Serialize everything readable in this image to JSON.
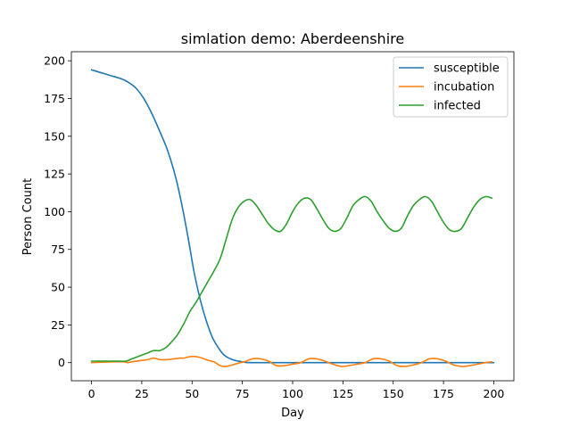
{
  "chart_data": {
    "type": "line",
    "title": "simlation demo: Aberdeenshire",
    "xlabel": "Day",
    "ylabel": "Person Count",
    "xlim": [
      -10,
      210
    ],
    "ylim": [
      -12,
      206
    ],
    "xticks": [
      0,
      25,
      50,
      75,
      100,
      125,
      150,
      175,
      200
    ],
    "yticks": [
      0,
      25,
      50,
      75,
      100,
      125,
      150,
      175,
      200
    ],
    "grid": false,
    "legend_position": "top-right",
    "series": [
      {
        "name": "susceptible",
        "color": "#1f77b4",
        "points": [
          [
            0,
            194
          ],
          [
            5,
            192
          ],
          [
            10,
            190
          ],
          [
            15,
            188
          ],
          [
            18,
            186
          ],
          [
            22,
            182
          ],
          [
            26,
            175
          ],
          [
            30,
            165
          ],
          [
            34,
            153
          ],
          [
            38,
            140
          ],
          [
            42,
            122
          ],
          [
            45,
            104
          ],
          [
            48,
            83
          ],
          [
            51,
            60
          ],
          [
            54,
            42
          ],
          [
            57,
            28
          ],
          [
            60,
            17
          ],
          [
            63,
            10
          ],
          [
            66,
            5
          ],
          [
            70,
            2
          ],
          [
            75,
            0.5
          ],
          [
            80,
            0
          ],
          [
            100,
            0
          ],
          [
            125,
            0
          ],
          [
            150,
            0
          ],
          [
            175,
            0
          ],
          [
            200,
            0
          ]
        ]
      },
      {
        "name": "incubation",
        "color": "#ff7f0e",
        "points": [
          [
            0,
            0
          ],
          [
            10,
            0.5
          ],
          [
            16,
            0.5
          ],
          [
            18,
            0
          ],
          [
            20,
            0.5
          ],
          [
            25,
            1.5
          ],
          [
            28,
            2
          ],
          [
            31,
            3
          ],
          [
            34,
            2
          ],
          [
            38,
            2
          ],
          [
            41,
            2.5
          ],
          [
            44,
            3
          ],
          [
            46,
            3
          ],
          [
            49,
            4
          ],
          [
            52,
            4
          ],
          [
            55,
            3
          ],
          [
            58,
            1.5
          ],
          [
            61,
            0.5
          ],
          [
            64,
            -2
          ],
          [
            67,
            -2.5
          ],
          [
            70,
            -1.5
          ],
          [
            74,
            0
          ],
          [
            76,
            0.5
          ],
          [
            80,
            2.5
          ],
          [
            84,
            2.5
          ],
          [
            88,
            1
          ],
          [
            92,
            -2
          ],
          [
            96,
            -2
          ],
          [
            100,
            -1
          ],
          [
            104,
            0
          ],
          [
            108,
            2.5
          ],
          [
            112,
            2.5
          ],
          [
            116,
            1
          ],
          [
            120,
            -1
          ],
          [
            124,
            -2.5
          ],
          [
            128,
            -2
          ],
          [
            132,
            -1
          ],
          [
            136,
            0
          ],
          [
            140,
            2.5
          ],
          [
            144,
            2.5
          ],
          [
            148,
            1
          ],
          [
            152,
            -2
          ],
          [
            156,
            -2.5
          ],
          [
            160,
            -1.5
          ],
          [
            164,
            0
          ],
          [
            168,
            2.5
          ],
          [
            172,
            2.5
          ],
          [
            176,
            1
          ],
          [
            180,
            -1.5
          ],
          [
            184,
            -2.5
          ],
          [
            188,
            -2
          ],
          [
            192,
            -1
          ],
          [
            196,
            0
          ],
          [
            199,
            0.5
          ]
        ]
      },
      {
        "name": "infected",
        "color": "#2ca02c",
        "points": [
          [
            0,
            1
          ],
          [
            10,
            1
          ],
          [
            17,
            1
          ],
          [
            20,
            2.5
          ],
          [
            25,
            5
          ],
          [
            28,
            6.5
          ],
          [
            31,
            8
          ],
          [
            34,
            8
          ],
          [
            37,
            10
          ],
          [
            40,
            14
          ],
          [
            43,
            19
          ],
          [
            46,
            26
          ],
          [
            49,
            34
          ],
          [
            52,
            40
          ],
          [
            55,
            47
          ],
          [
            58,
            54
          ],
          [
            61,
            61
          ],
          [
            64,
            69
          ],
          [
            67,
            82
          ],
          [
            70,
            95
          ],
          [
            73,
            103
          ],
          [
            76,
            107
          ],
          [
            79,
            108
          ],
          [
            82,
            104
          ],
          [
            85,
            98
          ],
          [
            88,
            92
          ],
          [
            91,
            88
          ],
          [
            94,
            87
          ],
          [
            97,
            92
          ],
          [
            100,
            100
          ],
          [
            103,
            106
          ],
          [
            106,
            109
          ],
          [
            109,
            108
          ],
          [
            112,
            102
          ],
          [
            115,
            95
          ],
          [
            118,
            89
          ],
          [
            121,
            87
          ],
          [
            124,
            89
          ],
          [
            127,
            96
          ],
          [
            130,
            104
          ],
          [
            133,
            108
          ],
          [
            136,
            110
          ],
          [
            139,
            107
          ],
          [
            142,
            100
          ],
          [
            145,
            94
          ],
          [
            148,
            89
          ],
          [
            151,
            87
          ],
          [
            154,
            89
          ],
          [
            157,
            97
          ],
          [
            160,
            104
          ],
          [
            163,
            108
          ],
          [
            166,
            110
          ],
          [
            169,
            107
          ],
          [
            172,
            100
          ],
          [
            175,
            93
          ],
          [
            178,
            88
          ],
          [
            181,
            87
          ],
          [
            184,
            89
          ],
          [
            187,
            96
          ],
          [
            190,
            103
          ],
          [
            193,
            108
          ],
          [
            196,
            110
          ],
          [
            199,
            109
          ]
        ]
      }
    ]
  }
}
